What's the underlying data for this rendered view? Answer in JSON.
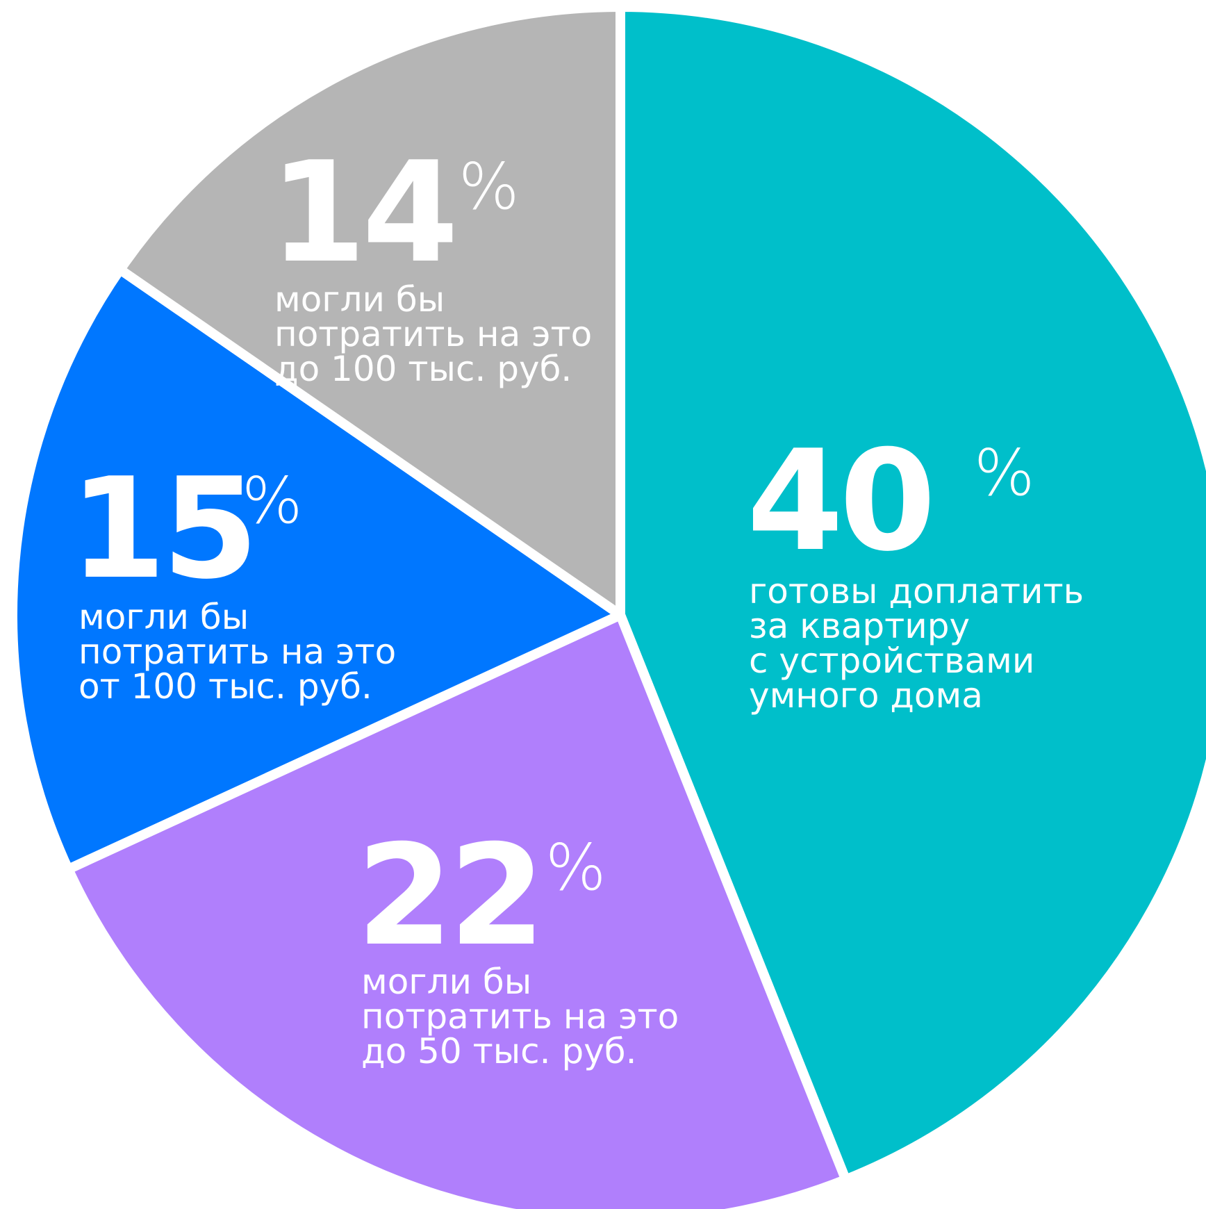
{
  "chart_data": {
    "type": "pie",
    "slices": [
      {
        "value": 40,
        "percent_sign": "%",
        "description": [
          "готовы доплатить",
          "за квартиру",
          "с устройствами",
          "умного дома"
        ],
        "color": "#00bfca"
      },
      {
        "value": 22,
        "percent_sign": "%",
        "description": [
          "могли бы",
          "потратить на это",
          "до 50 тыс. руб."
        ],
        "color": "#b07ffc"
      },
      {
        "value": 15,
        "percent_sign": "%",
        "description": [
          "могли бы",
          "потратить на это",
          "от 100 тыс. руб."
        ],
        "color": "#0077ff"
      },
      {
        "value": 14,
        "percent_sign": "%",
        "description": [
          "могли бы",
          "потратить на это",
          "до 100 тыс. руб."
        ],
        "color": "#b5b5b5"
      }
    ]
  }
}
